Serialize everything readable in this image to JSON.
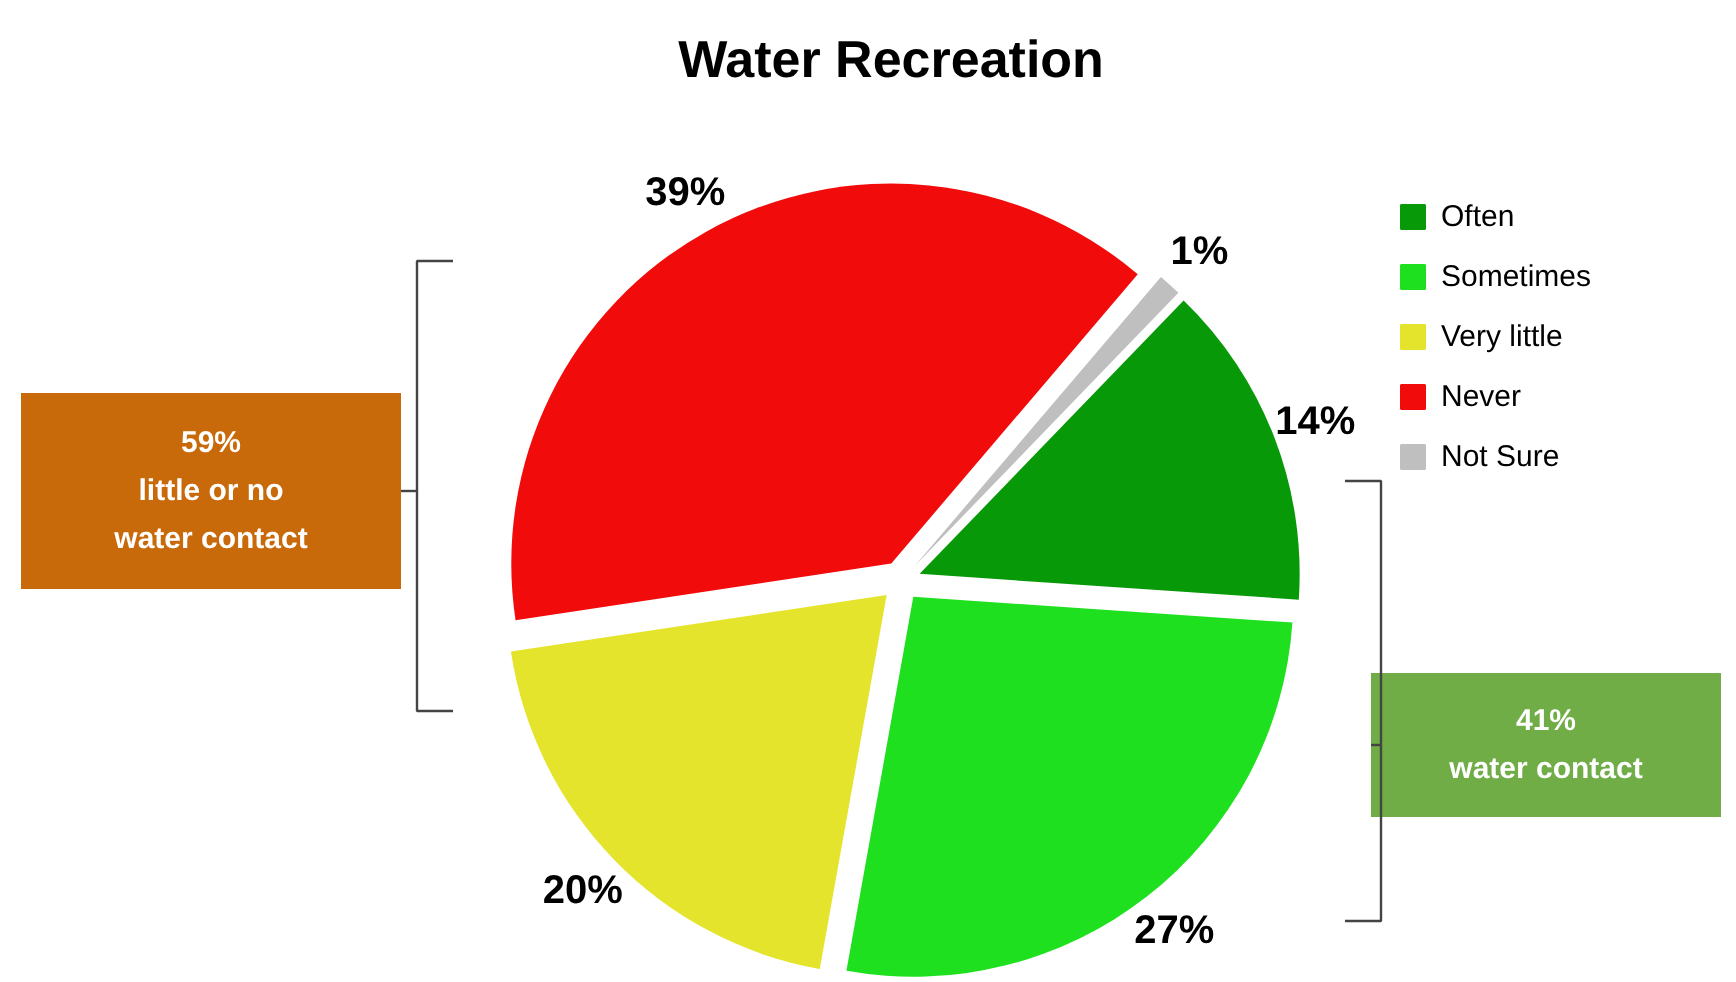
{
  "chart_data": {
    "type": "pie",
    "title": "Water Recreation",
    "categories": [
      "Often",
      "Sometimes",
      "Very little",
      "Never",
      "Not Sure"
    ],
    "values": [
      14,
      27,
      20,
      39,
      1
    ],
    "colors": [
      "#079907",
      "#1fe01f",
      "#e4e42c",
      "#f20b0b",
      "#bfbfbf"
    ],
    "value_labels": [
      "14%",
      "27%",
      "20%",
      "39%",
      "1%"
    ],
    "legend": "right",
    "annotations": [
      "59%\nlittle or no\nwater contact",
      "41%\nwater contact"
    ]
  }
}
